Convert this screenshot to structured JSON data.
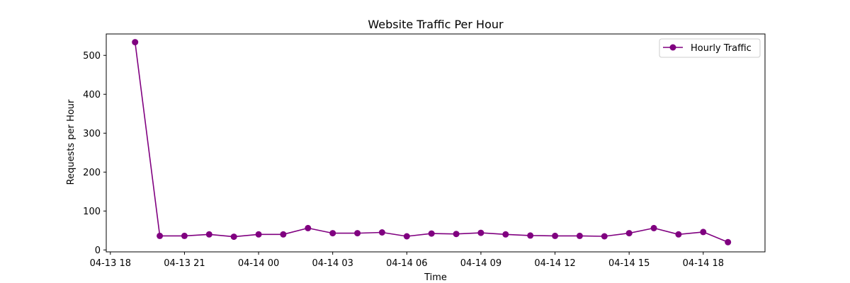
{
  "chart_data": {
    "type": "line",
    "title": "Website Traffic Per Hour",
    "xlabel": "Time",
    "ylabel": "Requests per Hour",
    "x_tick_labels": [
      "04-13 18",
      "04-13 21",
      "04-14 00",
      "04-14 03",
      "04-14 06",
      "04-14 09",
      "04-14 12",
      "04-14 15",
      "04-14 18"
    ],
    "y_ticks": [
      0,
      100,
      200,
      300,
      400,
      500
    ],
    "ylim": [
      -5,
      555
    ],
    "xlim": [
      "2025-04-13 17:50",
      "2025-04-14 20:30"
    ],
    "x": [
      "2025-04-13 19:00",
      "2025-04-13 20:00",
      "2025-04-13 21:00",
      "2025-04-13 22:00",
      "2025-04-13 23:00",
      "2025-04-14 00:00",
      "2025-04-14 01:00",
      "2025-04-14 02:00",
      "2025-04-14 03:00",
      "2025-04-14 04:00",
      "2025-04-14 05:00",
      "2025-04-14 06:00",
      "2025-04-14 07:00",
      "2025-04-14 08:00",
      "2025-04-14 09:00",
      "2025-04-14 10:00",
      "2025-04-14 11:00",
      "2025-04-14 12:00",
      "2025-04-14 13:00",
      "2025-04-14 14:00",
      "2025-04-14 15:00",
      "2025-04-14 16:00",
      "2025-04-14 17:00",
      "2025-04-14 18:00",
      "2025-04-14 19:00"
    ],
    "series": [
      {
        "name": "Hourly Traffic",
        "color": "#800080",
        "marker": "circle",
        "values": [
          534,
          36,
          36,
          40,
          34,
          40,
          40,
          56,
          43,
          43,
          45,
          35,
          42,
          41,
          44,
          40,
          37,
          36,
          36,
          35,
          43,
          56,
          40,
          46,
          20
        ]
      }
    ],
    "legend_position": "top-right",
    "grid": false
  }
}
